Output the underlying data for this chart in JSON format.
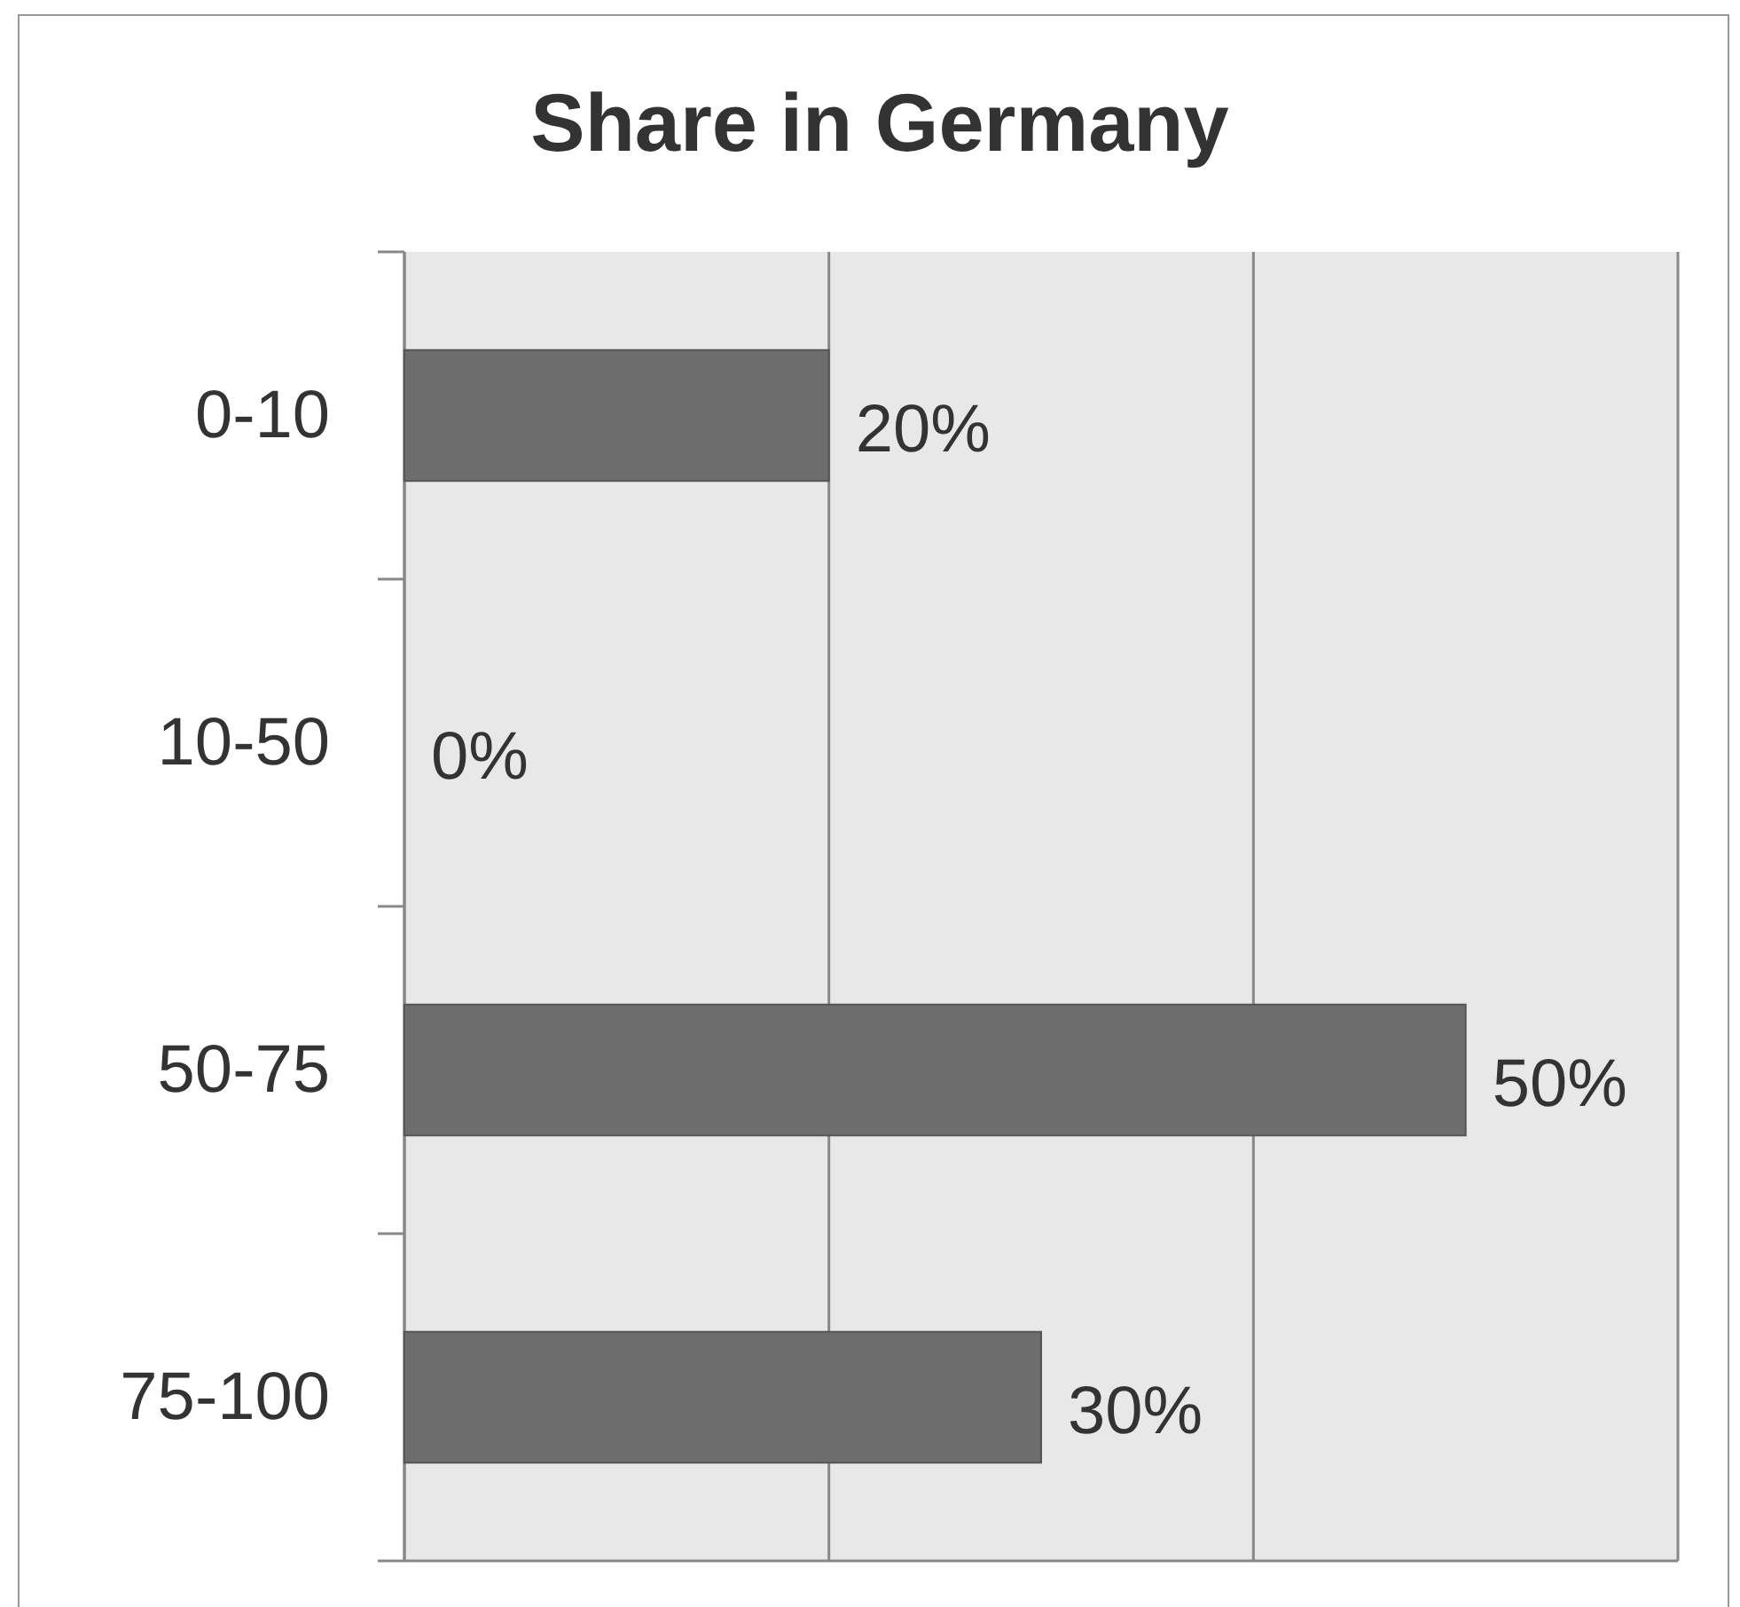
{
  "chart_data": {
    "type": "bar",
    "orientation": "horizontal",
    "title": "Share in Germany",
    "categories": [
      "0-10",
      "10-50",
      "50-75",
      "75-100"
    ],
    "values": [
      20,
      0,
      50,
      30
    ],
    "value_labels": [
      "20%",
      "0%",
      "50%",
      "30%"
    ],
    "color": "#6d6d6d",
    "xlim": [
      0,
      60
    ],
    "xticks": [
      {
        "value": 0,
        "label": null
      },
      {
        "value": 20,
        "label": null
      },
      {
        "value": 40,
        "label": null
      },
      {
        "value": 60,
        "label": null
      }
    ],
    "tick_labels": "y",
    "grid": "x"
  }
}
